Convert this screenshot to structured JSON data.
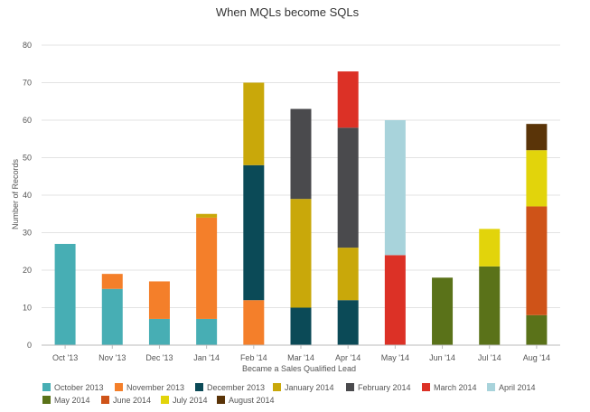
{
  "chart_data": {
    "type": "bar",
    "stacked": true,
    "title": "When MQLs become SQLs",
    "xlabel": "Became a Sales Qualified Lead",
    "ylabel": "Number of Records",
    "ylim": [
      0,
      80
    ],
    "yticks": [
      0,
      10,
      20,
      30,
      40,
      50,
      60,
      70,
      80
    ],
    "grid": true,
    "legend_position": "bottom",
    "categories": [
      "Oct '13",
      "Nov '13",
      "Dec '13",
      "Jan '14",
      "Feb '14",
      "Mar '14",
      "Apr '14",
      "May '14",
      "Jun '14",
      "Jul '14",
      "Aug '14"
    ],
    "series": [
      {
        "name": "October 2013",
        "color": "#47AEB4",
        "values": [
          27,
          15,
          7,
          7,
          0,
          0,
          0,
          0,
          0,
          0,
          0
        ]
      },
      {
        "name": "November 2013",
        "color": "#F47F2A",
        "values": [
          0,
          4,
          10,
          27,
          12,
          0,
          0,
          0,
          0,
          0,
          0
        ]
      },
      {
        "name": "December 2013",
        "color": "#0B4A57",
        "values": [
          0,
          0,
          0,
          0,
          36,
          10,
          12,
          0,
          0,
          0,
          0
        ]
      },
      {
        "name": "January 2014",
        "color": "#C9A80A",
        "values": [
          0,
          0,
          0,
          1,
          22,
          29,
          14,
          0,
          0,
          0,
          0
        ]
      },
      {
        "name": "February 2014",
        "color": "#4A4A4D",
        "values": [
          0,
          0,
          0,
          0,
          0,
          24,
          32,
          0,
          0,
          0,
          0
        ]
      },
      {
        "name": "March 2014",
        "color": "#DC3126",
        "values": [
          0,
          0,
          0,
          0,
          0,
          0,
          15,
          24,
          0,
          0,
          0
        ]
      },
      {
        "name": "April 2014",
        "color": "#A8D3DB",
        "values": [
          0,
          0,
          0,
          0,
          0,
          0,
          0,
          36,
          0,
          0,
          0
        ]
      },
      {
        "name": "May 2014",
        "color": "#5A7219",
        "values": [
          0,
          0,
          0,
          0,
          0,
          0,
          0,
          0,
          18,
          21,
          8
        ]
      },
      {
        "name": "June 2014",
        "color": "#CF5318",
        "values": [
          0,
          0,
          0,
          0,
          0,
          0,
          0,
          0,
          0,
          0,
          29
        ]
      },
      {
        "name": "July 2014",
        "color": "#E2D40B",
        "values": [
          0,
          0,
          0,
          0,
          0,
          0,
          0,
          0,
          0,
          10,
          15
        ]
      },
      {
        "name": "August 2014",
        "color": "#5A3408",
        "values": [
          0,
          0,
          0,
          0,
          0,
          0,
          0,
          0,
          0,
          0,
          7
        ]
      }
    ]
  }
}
